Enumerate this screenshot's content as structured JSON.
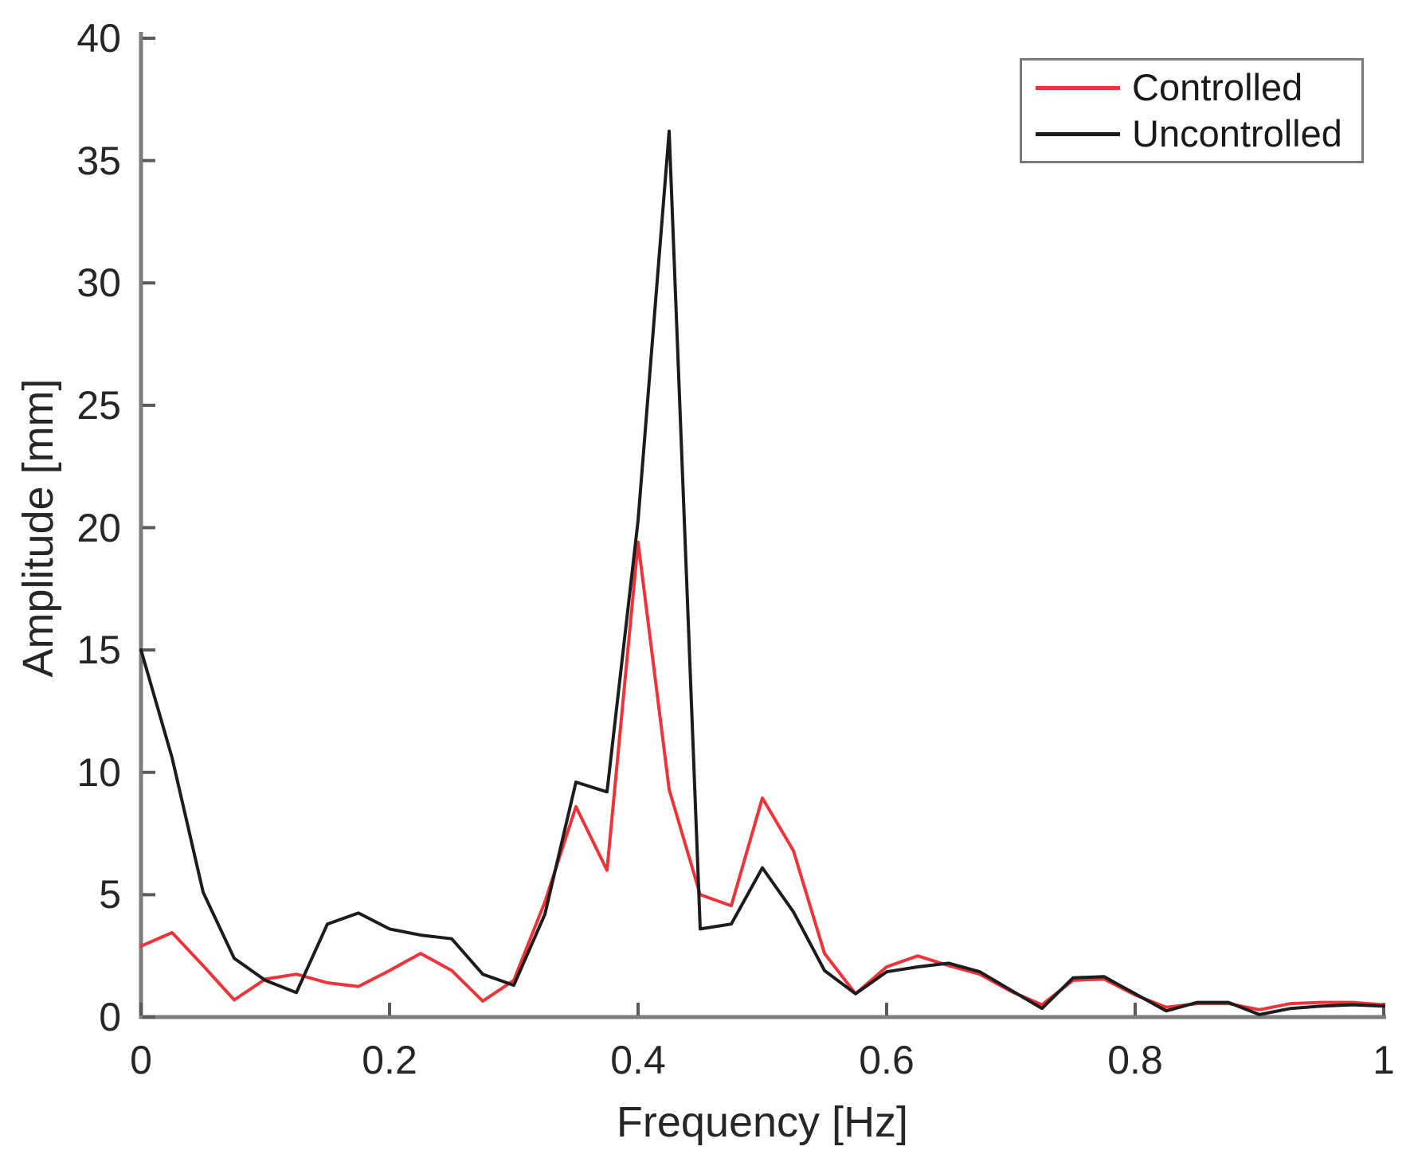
{
  "figure": {
    "background": "#ffffff",
    "axis_color": "#7d7d7d",
    "tick_color": "#5a5a5a",
    "text_color": "#262626"
  },
  "chart_data": {
    "type": "line",
    "title": "",
    "xlabel": "Frequency [Hz]",
    "ylabel": "Amplitude [mm]",
    "xlim": [
      0,
      1
    ],
    "ylim": [
      0,
      40
    ],
    "grid": false,
    "legend_position": "top-right",
    "xtick_values": [
      0,
      0.2,
      0.4,
      0.6,
      0.8,
      1
    ],
    "xtick_labels": [
      "0",
      "0.2",
      "0.4",
      "0.6",
      "0.8",
      "1"
    ],
    "ytick_values": [
      0,
      5,
      10,
      15,
      20,
      25,
      30,
      35,
      40
    ],
    "ytick_labels": [
      "0",
      "5",
      "10",
      "15",
      "20",
      "25",
      "30",
      "35",
      "40"
    ],
    "x": [
      0,
      0.025,
      0.05,
      0.075,
      0.1,
      0.125,
      0.15,
      0.175,
      0.2,
      0.225,
      0.25,
      0.275,
      0.3,
      0.325,
      0.35,
      0.375,
      0.4,
      0.425,
      0.45,
      0.475,
      0.5,
      0.525,
      0.55,
      0.575,
      0.6,
      0.625,
      0.65,
      0.675,
      0.7,
      0.725,
      0.75,
      0.775,
      0.8,
      0.825,
      0.85,
      0.875,
      0.9,
      0.925,
      0.95,
      0.975,
      1.0
    ],
    "series": [
      {
        "name": "Controlled",
        "color": "#ef3338",
        "line_width": 4,
        "values": [
          2.9,
          3.45,
          2.1,
          0.7,
          1.55,
          1.75,
          1.4,
          1.25,
          1.9,
          2.6,
          1.9,
          0.65,
          1.5,
          4.7,
          8.6,
          6.0,
          19.4,
          9.3,
          5.0,
          4.55,
          8.95,
          6.8,
          2.6,
          0.95,
          2.05,
          2.5,
          2.1,
          1.75,
          1.05,
          0.5,
          1.5,
          1.55,
          0.9,
          0.4,
          0.55,
          0.55,
          0.3,
          0.55,
          0.6,
          0.6,
          0.5
        ]
      },
      {
        "name": "Uncontrolled",
        "color": "#1c1c1c",
        "line_width": 4,
        "values": [
          15.0,
          10.6,
          5.1,
          2.4,
          1.5,
          1.0,
          3.8,
          4.25,
          3.6,
          3.35,
          3.2,
          1.75,
          1.3,
          4.2,
          9.6,
          9.2,
          20.3,
          36.2,
          3.6,
          3.8,
          6.1,
          4.3,
          1.9,
          0.95,
          1.85,
          2.05,
          2.2,
          1.85,
          1.1,
          0.35,
          1.6,
          1.65,
          0.95,
          0.25,
          0.6,
          0.6,
          0.1,
          0.35,
          0.45,
          0.5,
          0.45
        ]
      }
    ]
  },
  "legend": {
    "series": [
      {
        "label": "Controlled"
      },
      {
        "label": "Uncontrolled"
      }
    ]
  }
}
